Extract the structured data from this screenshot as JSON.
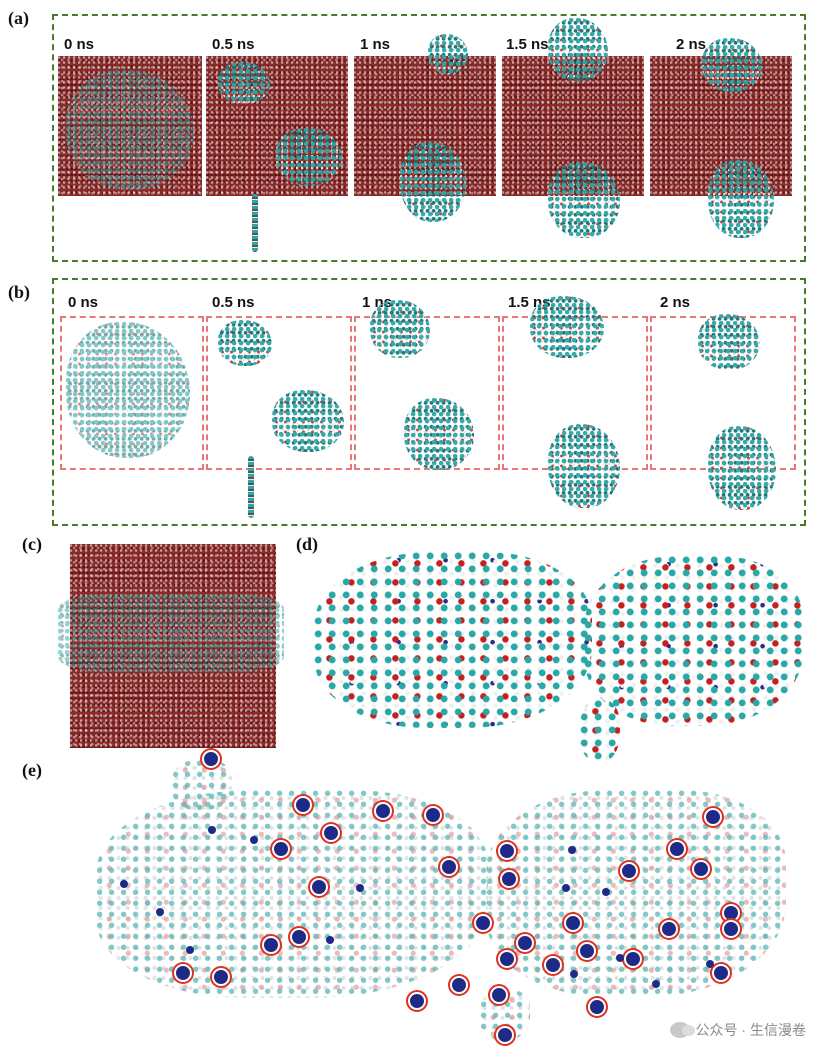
{
  "panels": {
    "a": {
      "label": "(a)",
      "times": [
        "0 ns",
        "0.5 ns",
        "1 ns",
        "1.5 ns",
        "2 ns"
      ]
    },
    "b": {
      "label": "(b)",
      "times": [
        "0 ns",
        "0.5 ns",
        "1 ns",
        "1.5 ns",
        "2 ns"
      ]
    },
    "c": {
      "label": "(c)"
    },
    "d": {
      "label": "(d)"
    },
    "e": {
      "label": "(e)"
    }
  },
  "watermark": {
    "text": "公众号 · 生信漫卷",
    "icon": "wechat-icon"
  },
  "colors": {
    "frame_green": "#4a7a2a",
    "box_red": "#e87878",
    "water": "#8c2a2a",
    "carbon": "#2aa7a7",
    "oxygen": "#c42020",
    "nitrogen": "#1f2a86",
    "highlight_ring": "#e03020"
  }
}
